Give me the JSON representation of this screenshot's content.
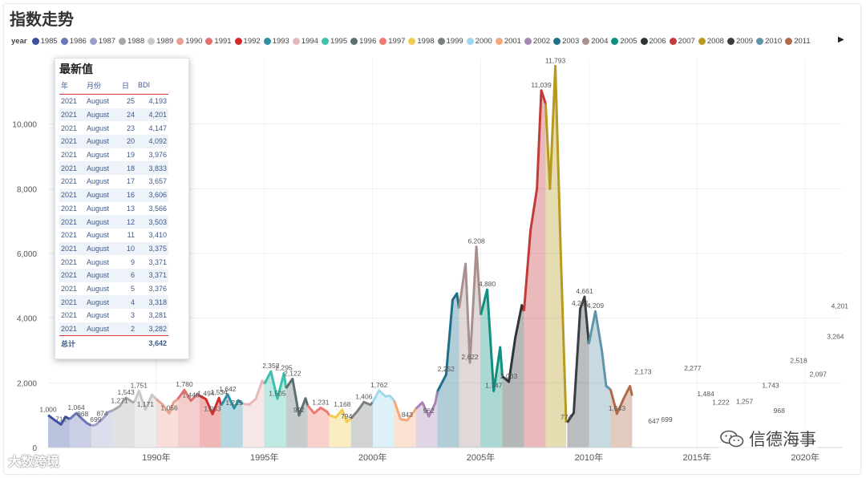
{
  "header": {
    "title": "指数走势"
  },
  "legend": {
    "label": "year",
    "items": [
      {
        "label": "1985",
        "color": "#3d4f9f"
      },
      {
        "label": "1986",
        "color": "#6b76b8"
      },
      {
        "label": "1987",
        "color": "#9aa0c8"
      },
      {
        "label": "1988",
        "color": "#a8a8a8"
      },
      {
        "label": "1989",
        "color": "#c8c8c8"
      },
      {
        "label": "1990",
        "color": "#e9a090"
      },
      {
        "label": "1991",
        "color": "#e07070"
      },
      {
        "label": "1992",
        "color": "#d42a2a"
      },
      {
        "label": "1993",
        "color": "#2d8fa6"
      },
      {
        "label": "1994",
        "color": "#e8b8b8"
      },
      {
        "label": "1995",
        "color": "#3fbfad"
      },
      {
        "label": "1996",
        "color": "#5f6f6f"
      },
      {
        "label": "1997",
        "color": "#f07870"
      },
      {
        "label": "1998",
        "color": "#f2cc50"
      },
      {
        "label": "1999",
        "color": "#7a7f7f"
      },
      {
        "label": "2000",
        "color": "#9fd8ec"
      },
      {
        "label": "2001",
        "color": "#f2a878"
      },
      {
        "label": "2002",
        "color": "#a884b4"
      },
      {
        "label": "2003",
        "color": "#1f6f8b"
      },
      {
        "label": "2004",
        "color": "#a89090"
      },
      {
        "label": "2005",
        "color": "#0f8f7f"
      },
      {
        "label": "2006",
        "color": "#2f3434"
      },
      {
        "label": "2007",
        "color": "#c23a3a"
      },
      {
        "label": "2008",
        "color": "#b89a20"
      },
      {
        "label": "2009",
        "color": "#3a3e42"
      },
      {
        "label": "2010",
        "color": "#5f95a8"
      },
      {
        "label": "2011",
        "color": "#b06a4a"
      }
    ],
    "next_icon": "triangle-right-icon"
  },
  "table": {
    "title": "最新值",
    "headers": [
      "年",
      "月份",
      "日",
      "BDI"
    ],
    "rows": [
      [
        "2021",
        "August",
        "25",
        "4,193"
      ],
      [
        "2021",
        "August",
        "24",
        "4,201"
      ],
      [
        "2021",
        "August",
        "23",
        "4,147"
      ],
      [
        "2021",
        "August",
        "20",
        "4,092"
      ],
      [
        "2021",
        "August",
        "19",
        "3,976"
      ],
      [
        "2021",
        "August",
        "18",
        "3,833"
      ],
      [
        "2021",
        "August",
        "17",
        "3,657"
      ],
      [
        "2021",
        "August",
        "16",
        "3,606"
      ],
      [
        "2021",
        "August",
        "13",
        "3,566"
      ],
      [
        "2021",
        "August",
        "12",
        "3,503"
      ],
      [
        "2021",
        "August",
        "11",
        "3,410"
      ],
      [
        "2021",
        "August",
        "10",
        "3,375"
      ],
      [
        "2021",
        "August",
        "9",
        "3,371"
      ],
      [
        "2021",
        "August",
        "6",
        "3,371"
      ],
      [
        "2021",
        "August",
        "5",
        "3,376"
      ],
      [
        "2021",
        "August",
        "4",
        "3,318"
      ],
      [
        "2021",
        "August",
        "3",
        "3,281"
      ],
      [
        "2021",
        "August",
        "2",
        "3,282"
      ]
    ],
    "total_label": "总计",
    "total_value": "3,642"
  },
  "watermarks": {
    "left": "大数跨境",
    "right": "信德海事"
  },
  "chart_data": {
    "type": "area",
    "xlim": [
      1985,
      2021.7
    ],
    "ylim": [
      0,
      12000
    ],
    "y_ticks": [
      0,
      2000,
      4000,
      6000,
      8000,
      10000
    ],
    "y_tick_labels": [
      "0",
      "2,000",
      "4,000",
      "6,000",
      "8,000",
      "10,000"
    ],
    "x_ticks": [
      1990,
      1995,
      2000,
      2005,
      2010,
      2015,
      2020
    ],
    "x_tick_labels": [
      "1990年",
      "1995年",
      "2000年",
      "2005年",
      "2010年",
      "2015年",
      "2020年"
    ],
    "grid": true,
    "series": [
      {
        "year": 1985,
        "points": [
          [
            1985.0,
            1000
          ],
          [
            1985.3,
            850
          ],
          [
            1985.6,
            712
          ],
          [
            1985.8,
            950
          ],
          [
            1986.0,
            880
          ]
        ]
      },
      {
        "year": 1986,
        "points": [
          [
            1986.0,
            880
          ],
          [
            1986.3,
            1064
          ],
          [
            1986.6,
            868
          ],
          [
            1986.8,
            750
          ],
          [
            1987.0,
            680
          ]
        ]
      },
      {
        "year": 1987,
        "points": [
          [
            1987.0,
            680
          ],
          [
            1987.2,
            699
          ],
          [
            1987.5,
            874
          ],
          [
            1987.8,
            1100
          ],
          [
            1988.0,
            1150
          ]
        ]
      },
      {
        "year": 1988,
        "points": [
          [
            1988.0,
            1150
          ],
          [
            1988.3,
            1271
          ],
          [
            1988.6,
            1543
          ],
          [
            1988.9,
            1400
          ],
          [
            1989.0,
            1420
          ]
        ]
      },
      {
        "year": 1989,
        "points": [
          [
            1989.0,
            1420
          ],
          [
            1989.2,
            1751
          ],
          [
            1989.5,
            1171
          ],
          [
            1989.8,
            1629
          ],
          [
            1990.0,
            1500
          ]
        ]
      },
      {
        "year": 1990,
        "points": [
          [
            1990.0,
            1500
          ],
          [
            1990.3,
            1326
          ],
          [
            1990.6,
            1056
          ],
          [
            1990.8,
            1400
          ],
          [
            1991.0,
            1500
          ]
        ]
      },
      {
        "year": 1991,
        "points": [
          [
            1991.0,
            1500
          ],
          [
            1991.3,
            1780
          ],
          [
            1991.6,
            1446
          ],
          [
            1991.9,
            1650
          ],
          [
            1992.0,
            1600
          ]
        ]
      },
      {
        "year": 1992,
        "points": [
          [
            1992.0,
            1600
          ],
          [
            1992.3,
            1494
          ],
          [
            1992.6,
            1033
          ],
          [
            1992.9,
            1534
          ],
          [
            1993.0,
            1300
          ]
        ]
      },
      {
        "year": 1993,
        "points": [
          [
            1993.0,
            1300
          ],
          [
            1993.3,
            1642
          ],
          [
            1993.6,
            1215
          ],
          [
            1993.8,
            1457
          ],
          [
            1994.0,
            1350
          ]
        ]
      },
      {
        "year": 1994,
        "points": [
          [
            1994.0,
            1350
          ],
          [
            1994.3,
            1330
          ],
          [
            1994.6,
            1500
          ],
          [
            1994.9,
            2065
          ],
          [
            1995.0,
            1965
          ]
        ]
      },
      {
        "year": 1995,
        "points": [
          [
            1995.0,
            1965
          ],
          [
            1995.3,
            2352
          ],
          [
            1995.6,
            1505
          ],
          [
            1995.9,
            2295
          ],
          [
            1996.0,
            1834
          ]
        ]
      },
      {
        "year": 1996,
        "points": [
          [
            1996.0,
            1834
          ],
          [
            1996.3,
            2122
          ],
          [
            1996.6,
            992
          ],
          [
            1996.9,
            1522
          ],
          [
            1997.0,
            1300
          ]
        ]
      },
      {
        "year": 1997,
        "points": [
          [
            1997.0,
            1300
          ],
          [
            1997.3,
            1060
          ],
          [
            1997.6,
            1231
          ],
          [
            1997.9,
            1105
          ],
          [
            1998.0,
            1000
          ]
        ]
      },
      {
        "year": 1998,
        "points": [
          [
            1998.0,
            1000
          ],
          [
            1998.3,
            932
          ],
          [
            1998.6,
            1168
          ],
          [
            1998.8,
            794
          ],
          [
            1999.0,
            900
          ]
        ]
      },
      {
        "year": 1999,
        "points": [
          [
            1999.0,
            900
          ],
          [
            1999.3,
            1125
          ],
          [
            1999.6,
            1406
          ],
          [
            1999.9,
            1319
          ],
          [
            2000.0,
            1400
          ]
        ]
      },
      {
        "year": 2000,
        "points": [
          [
            2000.0,
            1400
          ],
          [
            2000.3,
            1762
          ],
          [
            2000.6,
            1581
          ],
          [
            2000.8,
            1598
          ],
          [
            2001.0,
            1449
          ]
        ]
      },
      {
        "year": 2001,
        "points": [
          [
            2001.0,
            1449
          ],
          [
            2001.3,
            876
          ],
          [
            2001.6,
            843
          ],
          [
            2001.9,
            1100
          ],
          [
            2002.0,
            1200
          ]
        ]
      },
      {
        "year": 2002,
        "points": [
          [
            2002.0,
            1200
          ],
          [
            2002.3,
            1394
          ],
          [
            2002.6,
            962
          ],
          [
            2002.9,
            1371
          ],
          [
            2003.0,
            1734
          ]
        ]
      },
      {
        "year": 2003,
        "points": [
          [
            2003.0,
            1734
          ],
          [
            2003.4,
            2252
          ],
          [
            2003.7,
            4563
          ],
          [
            2003.9,
            4765
          ],
          [
            2004.0,
            4300
          ]
        ]
      },
      {
        "year": 2004,
        "points": [
          [
            2004.0,
            4300
          ],
          [
            2004.3,
            5681
          ],
          [
            2004.5,
            2622
          ],
          [
            2004.8,
            6208
          ],
          [
            2005.0,
            4100
          ]
        ]
      },
      {
        "year": 2005,
        "points": [
          [
            2005.0,
            4100
          ],
          [
            2005.3,
            4880
          ],
          [
            2005.6,
            1747
          ],
          [
            2005.9,
            3100
          ],
          [
            2006.0,
            2200
          ]
        ]
      },
      {
        "year": 2006,
        "points": [
          [
            2006.0,
            2200
          ],
          [
            2006.3,
            2033
          ],
          [
            2006.6,
            3400
          ],
          [
            2006.9,
            4397
          ],
          [
            2007.0,
            4219
          ]
        ]
      },
      {
        "year": 2007,
        "points": [
          [
            2007.0,
            4219
          ],
          [
            2007.3,
            6700
          ],
          [
            2007.6,
            8000
          ],
          [
            2007.8,
            11039
          ],
          [
            2008.0,
            10633
          ]
        ]
      },
      {
        "year": 2008,
        "points": [
          [
            2008.0,
            10633
          ],
          [
            2008.2,
            8000
          ],
          [
            2008.45,
            11793
          ],
          [
            2008.7,
            6000
          ],
          [
            2008.95,
            774
          ]
        ]
      },
      {
        "year": 2009,
        "points": [
          [
            2009.0,
            774
          ],
          [
            2009.3,
            1072
          ],
          [
            2009.6,
            4291
          ],
          [
            2009.8,
            4661
          ],
          [
            2010.0,
            3200
          ]
        ]
      },
      {
        "year": 2010,
        "points": [
          [
            2010.0,
            3200
          ],
          [
            2010.3,
            4209
          ],
          [
            2010.6,
            3000
          ],
          [
            2010.8,
            1900
          ],
          [
            2011.0,
            1800
          ]
        ]
      },
      {
        "year": 2011,
        "points": [
          [
            2011.0,
            1800
          ],
          [
            2011.3,
            1043
          ],
          [
            2011.6,
            1500
          ],
          [
            2011.9,
            1899
          ],
          [
            2012.0,
            1600
          ]
        ]
      }
    ],
    "annotations": [
      {
        "x": 1985.0,
        "y": 1000,
        "label": "1,000"
      },
      {
        "x": 1985.6,
        "y": 712,
        "label": "712"
      },
      {
        "x": 1986.3,
        "y": 1064,
        "label": "1,064"
      },
      {
        "x": 1986.6,
        "y": 868,
        "label": "868"
      },
      {
        "x": 1987.2,
        "y": 699,
        "label": "699"
      },
      {
        "x": 1987.5,
        "y": 874,
        "label": "874"
      },
      {
        "x": 1988.3,
        "y": 1271,
        "label": "1,271"
      },
      {
        "x": 1988.6,
        "y": 1543,
        "label": "1,543"
      },
      {
        "x": 1989.2,
        "y": 1751,
        "label": "1,751"
      },
      {
        "x": 1989.5,
        "y": 1171,
        "label": "1,171"
      },
      {
        "x": 1990.6,
        "y": 1056,
        "label": "1,056"
      },
      {
        "x": 1991.3,
        "y": 1780,
        "label": "1,780"
      },
      {
        "x": 1991.6,
        "y": 1446,
        "label": "1,446"
      },
      {
        "x": 1992.3,
        "y": 1494,
        "label": "1,494"
      },
      {
        "x": 1992.6,
        "y": 1033,
        "label": "1,033"
      },
      {
        "x": 1992.9,
        "y": 1534,
        "label": "1,534"
      },
      {
        "x": 1993.3,
        "y": 1642,
        "label": "1,642"
      },
      {
        "x": 1993.6,
        "y": 1215,
        "label": "1,215"
      },
      {
        "x": 1995.3,
        "y": 2352,
        "label": "2,352"
      },
      {
        "x": 1995.6,
        "y": 1505,
        "label": "1,505"
      },
      {
        "x": 1995.9,
        "y": 2295,
        "label": "2,295"
      },
      {
        "x": 1996.3,
        "y": 2122,
        "label": "2,122"
      },
      {
        "x": 1996.6,
        "y": 992,
        "label": "992"
      },
      {
        "x": 1997.6,
        "y": 1231,
        "label": "1,231"
      },
      {
        "x": 1998.6,
        "y": 1168,
        "label": "1,168"
      },
      {
        "x": 1998.8,
        "y": 794,
        "label": "794"
      },
      {
        "x": 1999.6,
        "y": 1406,
        "label": "1,406"
      },
      {
        "x": 2000.3,
        "y": 1762,
        "label": "1,762"
      },
      {
        "x": 2001.6,
        "y": 843,
        "label": "843"
      },
      {
        "x": 2002.6,
        "y": 962,
        "label": "962"
      },
      {
        "x": 2003.4,
        "y": 2252,
        "label": "2,252"
      },
      {
        "x": 2004.5,
        "y": 2622,
        "label": "2,622"
      },
      {
        "x": 2004.8,
        "y": 6208,
        "label": "6,208"
      },
      {
        "x": 2005.3,
        "y": 4880,
        "label": "4,880"
      },
      {
        "x": 2005.6,
        "y": 1747,
        "label": "1,747"
      },
      {
        "x": 2006.3,
        "y": 2033,
        "label": "2,033"
      },
      {
        "x": 2007.8,
        "y": 11039,
        "label": "11,039"
      },
      {
        "x": 2008.45,
        "y": 11793,
        "label": "11,793"
      },
      {
        "x": 2008.95,
        "y": 774,
        "label": "774"
      },
      {
        "x": 2009.6,
        "y": 4291,
        "label": "4,291"
      },
      {
        "x": 2009.8,
        "y": 4661,
        "label": "4,661"
      },
      {
        "x": 2010.3,
        "y": 4209,
        "label": "4,209"
      },
      {
        "x": 2011.3,
        "y": 1043,
        "label": "1,043"
      },
      {
        "x": 2012.5,
        "y": 2173,
        "label": "2,173"
      },
      {
        "x": 2013.0,
        "y": 647,
        "label": "647"
      },
      {
        "x": 2013.6,
        "y": 699,
        "label": "699"
      },
      {
        "x": 2014.8,
        "y": 2277,
        "label": "2,277"
      },
      {
        "x": 2015.4,
        "y": 1484,
        "label": "1,484"
      },
      {
        "x": 2016.1,
        "y": 1222,
        "label": "1,222"
      },
      {
        "x": 2017.2,
        "y": 1257,
        "label": "1,257"
      },
      {
        "x": 2018.4,
        "y": 1743,
        "label": "1,743"
      },
      {
        "x": 2018.8,
        "y": 968,
        "label": "968"
      },
      {
        "x": 2019.7,
        "y": 2518,
        "label": "2,518"
      },
      {
        "x": 2020.6,
        "y": 2097,
        "label": "2,097"
      },
      {
        "x": 2021.6,
        "y": 4201,
        "label": "4,201"
      },
      {
        "x": 2021.4,
        "y": 3264,
        "label": "3,264"
      }
    ]
  }
}
